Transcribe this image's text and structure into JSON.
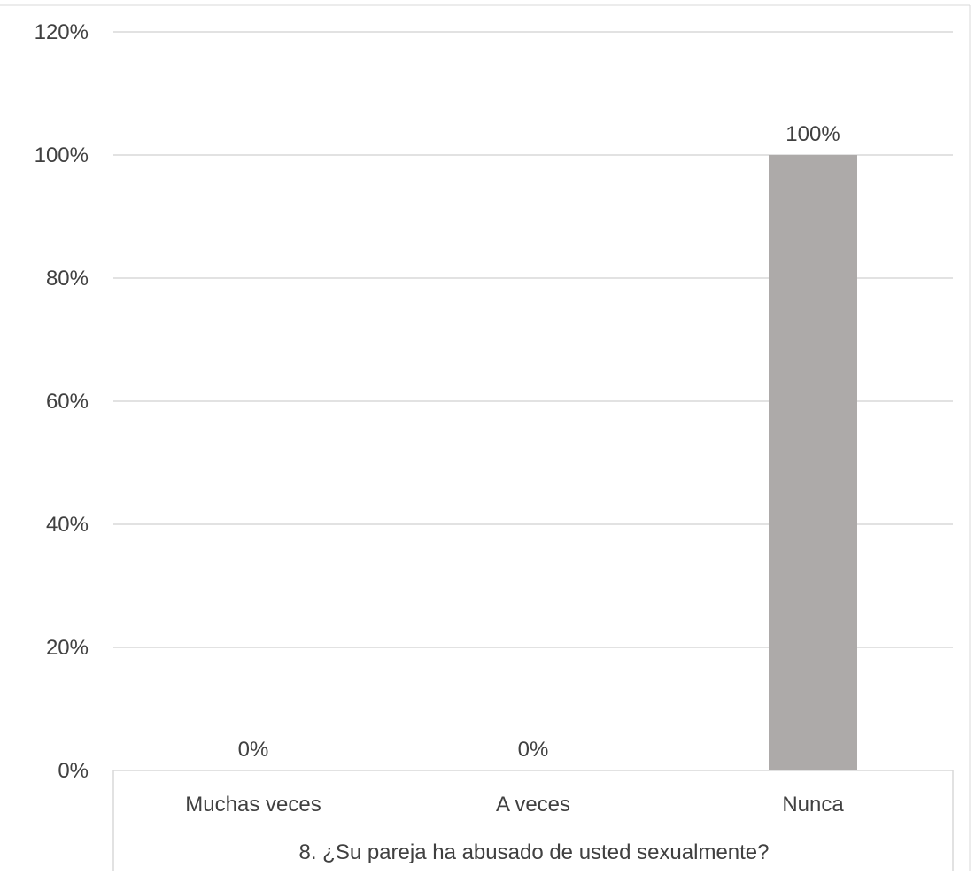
{
  "colors": {
    "bar": "#ADAAA9",
    "grid": "#D9D9D9",
    "text": "#404040",
    "frame": "#D9D9D9"
  },
  "chart_data": {
    "type": "bar",
    "title": "",
    "xlabel": "8. ¿Su pareja ha abusado de usted sexualmente?",
    "ylabel": "",
    "categories": [
      "Muchas veces",
      "A veces",
      "Nunca"
    ],
    "values": [
      0,
      0,
      100
    ],
    "data_labels": [
      "0%",
      "0%",
      "100%"
    ],
    "ylim": [
      0,
      120
    ],
    "y_ticks": [
      0,
      20,
      40,
      60,
      80,
      100,
      120
    ],
    "y_tick_labels": [
      "0%",
      "20%",
      "40%",
      "60%",
      "80%",
      "100%",
      "120%"
    ],
    "grid": true,
    "legend": "none"
  }
}
